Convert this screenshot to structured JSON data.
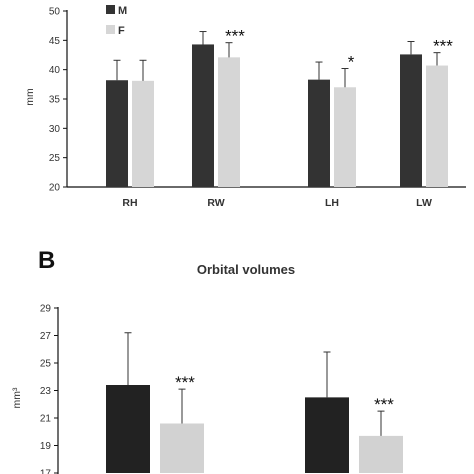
{
  "colors": {
    "M": "#333333",
    "F": "#d6d6d6",
    "M_B": "#222222",
    "F_B": "#d2d2d2",
    "axis": "#111111"
  },
  "panel_b": {
    "letter": "B"
  },
  "chart_data": [
    {
      "type": "bar",
      "title": "",
      "xlabel": "",
      "ylabel": "mm",
      "ylim": [
        20,
        50
      ],
      "yticks": [
        20,
        25,
        30,
        35,
        40,
        45,
        50
      ],
      "legend": {
        "position": "top-left",
        "entries": [
          "M",
          "F"
        ]
      },
      "grid": false,
      "categories": [
        "RH",
        "RW",
        "LH",
        "LW"
      ],
      "series": [
        {
          "name": "M",
          "values": [
            38.2,
            44.3,
            38.3,
            42.6
          ],
          "errors": [
            3.4,
            2.2,
            3.0,
            2.2
          ]
        },
        {
          "name": "F",
          "values": [
            38.1,
            42.1,
            37.0,
            40.7
          ],
          "errors": [
            3.5,
            2.5,
            3.2,
            2.2
          ]
        }
      ],
      "significance": [
        "",
        "***",
        "*",
        "***"
      ]
    },
    {
      "type": "bar",
      "title": "Orbital volumes",
      "xlabel": "",
      "ylabel": "mm³",
      "ylim": [
        17,
        29
      ],
      "yticks": [
        17,
        19,
        21,
        23,
        25,
        27,
        29
      ],
      "grid": false,
      "categories": [
        "",
        ""
      ],
      "series": [
        {
          "name": "M",
          "values": [
            23.4,
            22.5
          ],
          "errors": [
            3.8,
            3.3
          ]
        },
        {
          "name": "F",
          "values": [
            20.6,
            19.7
          ],
          "errors": [
            2.5,
            1.8
          ]
        }
      ],
      "significance": [
        "***",
        "***"
      ]
    }
  ]
}
